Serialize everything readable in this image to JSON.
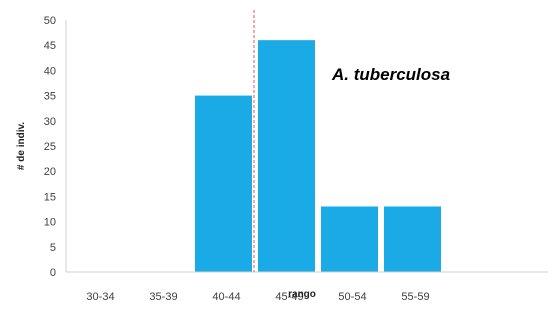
{
  "chart_data": {
    "type": "bar",
    "categories": [
      "30-34",
      "35-39",
      "40-44",
      "45-49",
      "50-54",
      "55-59"
    ],
    "values": [
      0,
      0,
      35,
      46,
      13,
      13
    ],
    "xlabel": "rango",
    "ylabel": "# de indiv.",
    "ylim": [
      0,
      50
    ],
    "yticks": [
      0,
      5,
      10,
      15,
      20,
      25,
      30,
      35,
      40,
      45,
      50
    ],
    "annotation": "A. tuberculosa",
    "reference_line": {
      "style": "dashed",
      "color": "#e8555a"
    },
    "grid": false,
    "legend": "none",
    "bar_color": "#1aabe6"
  }
}
